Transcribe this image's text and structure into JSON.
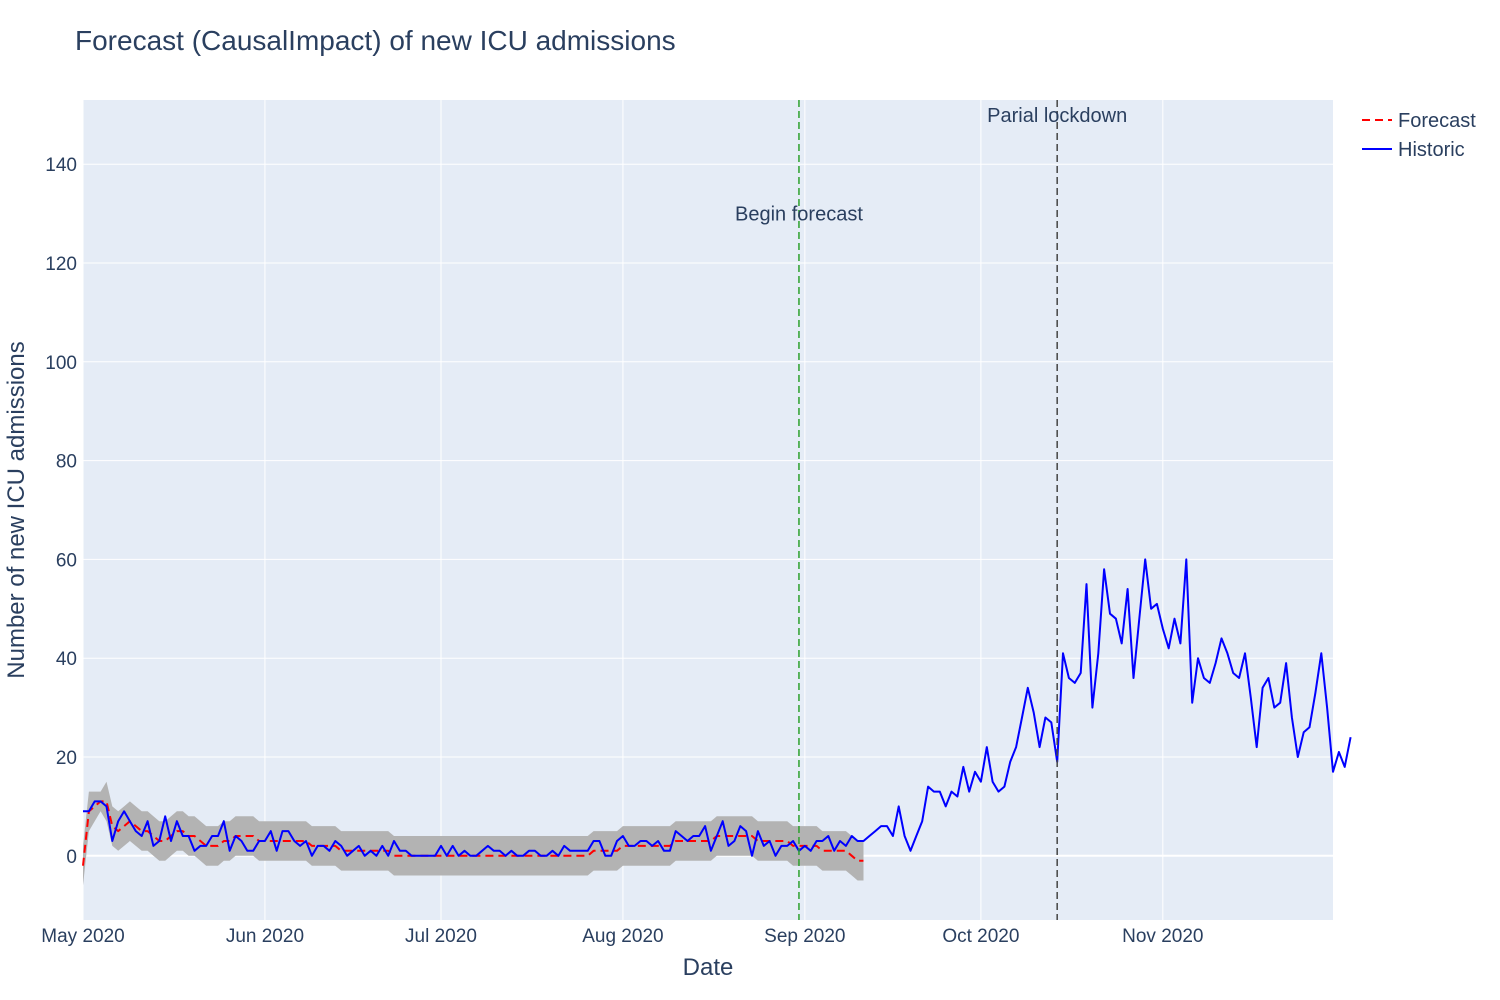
{
  "chart_data": {
    "type": "line",
    "title": "Forecast (CausalImpact) of new ICU admissions",
    "xlabel": "Date",
    "ylabel": "Number of new ICU admissions",
    "x_start": "2020-05-01",
    "x_end": "2020-11-30",
    "xlim": [
      "2020-05-01",
      "2020-11-30"
    ],
    "ylim": [
      -13,
      153
    ],
    "x_ticks": [
      {
        "date": "2020-05-01",
        "label": "May 2020"
      },
      {
        "date": "2020-06-01",
        "label": "Jun 2020"
      },
      {
        "date": "2020-07-01",
        "label": "Jul 2020"
      },
      {
        "date": "2020-08-01",
        "label": "Aug 2020"
      },
      {
        "date": "2020-09-01",
        "label": "Sep 2020"
      },
      {
        "date": "2020-10-01",
        "label": "Oct 2020"
      },
      {
        "date": "2020-11-01",
        "label": "Nov 2020"
      }
    ],
    "y_ticks": [
      0,
      20,
      40,
      60,
      80,
      100,
      120,
      140
    ],
    "grid": true,
    "legend_position": "top-right",
    "colors": {
      "plot_bg": "#e5ecf6",
      "grid": "#ffffff",
      "forecast": "#ff0000",
      "historic": "#0000ff",
      "band": "#b3b3b3",
      "begin_forecast_line": "#2ca02c",
      "lockdown_line": "#444444"
    },
    "series": [
      {
        "name": "Historic",
        "style": "solid",
        "values": [
          9,
          9,
          11,
          11,
          10,
          3,
          7,
          9,
          7,
          5,
          4,
          7,
          2,
          3,
          8,
          3,
          7,
          4,
          4,
          1,
          2,
          2,
          4,
          4,
          7,
          1,
          4,
          3,
          1,
          1,
          3,
          3,
          5,
          1,
          5,
          5,
          3,
          2,
          3,
          0,
          2,
          2,
          1,
          3,
          2,
          0,
          1,
          2,
          0,
          1,
          0,
          2,
          0,
          3,
          1,
          1,
          0,
          0,
          0,
          0,
          0,
          2,
          0,
          2,
          0,
          1,
          0,
          0,
          1,
          2,
          1,
          1,
          0,
          1,
          0,
          0,
          1,
          1,
          0,
          0,
          1,
          0,
          2,
          1,
          1,
          1,
          1,
          3,
          3,
          0,
          0,
          3,
          4,
          2,
          2,
          3,
          3,
          2,
          3,
          1,
          1,
          5,
          4,
          3,
          4,
          4,
          6,
          1,
          4,
          7,
          2,
          3,
          6,
          5,
          0,
          5,
          2,
          3,
          0,
          2,
          2,
          3,
          1,
          2,
          1,
          3,
          3,
          4,
          1,
          3,
          2,
          4,
          3,
          3,
          4,
          5,
          6,
          6,
          4,
          10,
          4,
          1,
          4,
          7,
          14,
          13,
          13,
          10,
          13,
          12,
          18,
          13,
          17,
          15,
          22,
          15,
          13,
          14,
          19,
          22,
          28,
          34,
          29,
          22,
          28,
          27,
          19,
          41,
          36,
          35,
          37,
          55,
          30,
          41,
          58,
          49,
          48,
          43,
          54,
          36,
          48,
          60,
          50,
          51,
          46,
          42,
          48,
          43,
          60,
          31,
          40,
          36,
          35,
          39,
          44,
          41,
          37,
          36,
          41,
          32,
          22,
          34,
          36,
          30,
          31,
          39,
          28,
          20,
          25,
          26,
          33,
          41,
          30,
          17,
          21,
          18,
          24
        ]
      },
      {
        "name": "Forecast",
        "style": "dashed",
        "values": [
          -2,
          9,
          10,
          11,
          11,
          6,
          5,
          6,
          7,
          6,
          5,
          5,
          4,
          3,
          3,
          4,
          5,
          5,
          4,
          4,
          3,
          2,
          2,
          2,
          3,
          3,
          4,
          4,
          4,
          4,
          3,
          3,
          3,
          3,
          3,
          3,
          3,
          3,
          3,
          2,
          2,
          2,
          2,
          2,
          1,
          1,
          1,
          1,
          1,
          1,
          1,
          1,
          1,
          0,
          0,
          0,
          0,
          0,
          0,
          0,
          0,
          0,
          0,
          0,
          0,
          0,
          0,
          0,
          0,
          0,
          0,
          0,
          0,
          0,
          0,
          0,
          0,
          0,
          0,
          0,
          0,
          0,
          0,
          0,
          0,
          0,
          0,
          1,
          1,
          1,
          1,
          1,
          2,
          2,
          2,
          2,
          2,
          2,
          2,
          2,
          2,
          3,
          3,
          3,
          3,
          3,
          3,
          3,
          4,
          4,
          4,
          4,
          4,
          4,
          4,
          3,
          3,
          3,
          3,
          3,
          3,
          2,
          2,
          2,
          2,
          2,
          1,
          1,
          1,
          1,
          1,
          0,
          -1,
          -1
        ]
      }
    ],
    "confidence_band": {
      "upper": [
        2,
        13,
        13,
        13,
        15,
        10,
        9,
        10,
        11,
        10,
        9,
        9,
        8,
        7,
        7,
        8,
        9,
        9,
        8,
        8,
        7,
        6,
        6,
        6,
        7,
        7,
        8,
        8,
        8,
        8,
        7,
        7,
        7,
        7,
        7,
        7,
        7,
        7,
        7,
        6,
        6,
        6,
        6,
        6,
        5,
        5,
        5,
        5,
        5,
        5,
        5,
        5,
        5,
        4,
        4,
        4,
        4,
        4,
        4,
        4,
        4,
        4,
        4,
        4,
        4,
        4,
        4,
        4,
        4,
        4,
        4,
        4,
        4,
        4,
        4,
        4,
        4,
        4,
        4,
        4,
        4,
        4,
        4,
        4,
        4,
        4,
        4,
        5,
        5,
        5,
        5,
        5,
        6,
        6,
        6,
        6,
        6,
        6,
        6,
        6,
        6,
        7,
        7,
        7,
        7,
        7,
        7,
        7,
        8,
        8,
        8,
        8,
        8,
        8,
        8,
        7,
        7,
        7,
        7,
        7,
        7,
        6,
        6,
        6,
        6,
        6,
        5,
        5,
        5,
        5,
        5,
        4,
        3,
        3
      ],
      "lower": [
        -6,
        5,
        7,
        9,
        7,
        2,
        1,
        2,
        3,
        2,
        1,
        1,
        0,
        -1,
        -1,
        0,
        1,
        1,
        0,
        0,
        -1,
        -2,
        -2,
        -2,
        -1,
        -1,
        0,
        0,
        0,
        0,
        -1,
        -1,
        -1,
        -1,
        -1,
        -1,
        -1,
        -1,
        -1,
        -2,
        -2,
        -2,
        -2,
        -2,
        -3,
        -3,
        -3,
        -3,
        -3,
        -3,
        -3,
        -3,
        -3,
        -4,
        -4,
        -4,
        -4,
        -4,
        -4,
        -4,
        -4,
        -4,
        -4,
        -4,
        -4,
        -4,
        -4,
        -4,
        -4,
        -4,
        -4,
        -4,
        -4,
        -4,
        -4,
        -4,
        -4,
        -4,
        -4,
        -4,
        -4,
        -4,
        -4,
        -4,
        -4,
        -4,
        -4,
        -3,
        -3,
        -3,
        -3,
        -3,
        -2,
        -2,
        -2,
        -2,
        -2,
        -2,
        -2,
        -2,
        -2,
        -1,
        -1,
        -1,
        -1,
        -1,
        -1,
        -1,
        0,
        0,
        0,
        0,
        0,
        0,
        0,
        -1,
        -1,
        -1,
        -1,
        -1,
        -1,
        -2,
        -2,
        -2,
        -2,
        -2,
        -3,
        -3,
        -3,
        -3,
        -3,
        -4,
        -5,
        -5
      ]
    },
    "annotations": [
      {
        "text": "Begin forecast",
        "date": "2020-08-31",
        "line": "begin_forecast_line",
        "text_y": 130
      },
      {
        "text": "Parial lockdown",
        "date": "2020-10-14",
        "line": "lockdown_line",
        "text_y": 150
      }
    ]
  }
}
